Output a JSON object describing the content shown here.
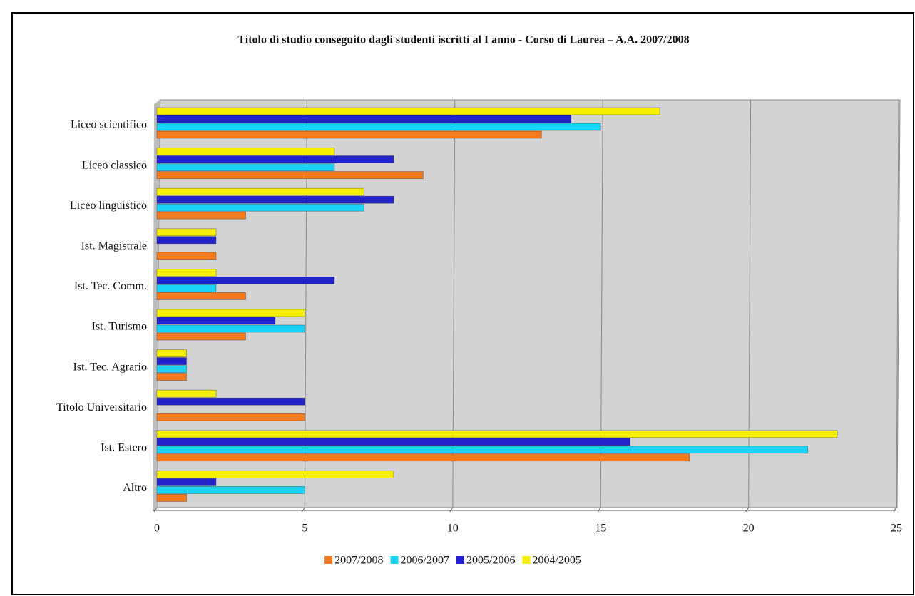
{
  "chart_data": {
    "type": "bar",
    "orientation": "horizontal",
    "title": "Titolo di studio conseguito dagli studenti iscritti al I anno - Corso di Laurea – A.A. 2007/2008",
    "categories": [
      "Liceo scientifico",
      "Liceo classico",
      "Liceo linguistico",
      "Ist. Magistrale",
      "Ist. Tec. Comm.",
      "Ist. Turismo",
      "Ist. Tec. Agrario",
      "Titolo Universitario",
      "Ist. Estero",
      "Altro"
    ],
    "series": [
      {
        "name": "2007/2008",
        "color": "#f47a1f",
        "values": [
          13,
          9,
          3,
          2,
          3,
          3,
          1,
          5,
          18,
          1
        ]
      },
      {
        "name": "2006/2007",
        "color": "#1ad2f5",
        "values": [
          15,
          6,
          7,
          0,
          2,
          5,
          1,
          0,
          22,
          5
        ]
      },
      {
        "name": "2005/2006",
        "color": "#2323cc",
        "values": [
          14,
          8,
          8,
          2,
          6,
          4,
          1,
          5,
          16,
          2
        ]
      },
      {
        "name": "2004/2005",
        "color": "#f6f000",
        "values": [
          17,
          6,
          7,
          2,
          2,
          5,
          1,
          2,
          23,
          8
        ]
      }
    ],
    "xlim": [
      0,
      25
    ],
    "xticks": [
      0,
      5,
      10,
      15,
      20,
      25
    ],
    "grid": true,
    "legend": "bottom"
  }
}
